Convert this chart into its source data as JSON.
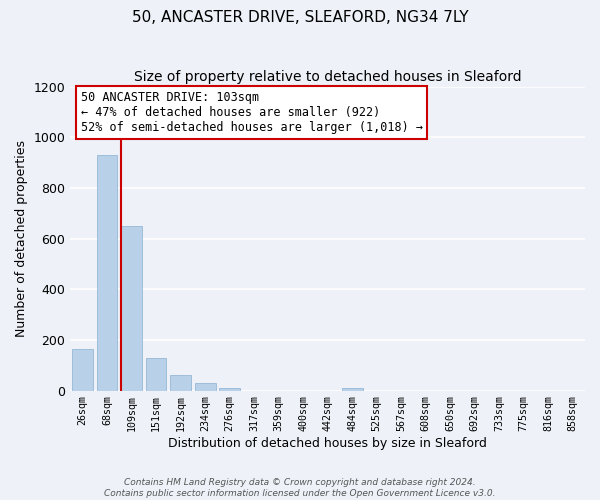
{
  "title": "50, ANCASTER DRIVE, SLEAFORD, NG34 7LY",
  "subtitle": "Size of property relative to detached houses in Sleaford",
  "xlabel": "Distribution of detached houses by size in Sleaford",
  "ylabel": "Number of detached properties",
  "bar_labels": [
    "26sqm",
    "68sqm",
    "109sqm",
    "151sqm",
    "192sqm",
    "234sqm",
    "276sqm",
    "317sqm",
    "359sqm",
    "400sqm",
    "442sqm",
    "484sqm",
    "525sqm",
    "567sqm",
    "608sqm",
    "650sqm",
    "692sqm",
    "733sqm",
    "775sqm",
    "816sqm",
    "858sqm"
  ],
  "bar_values": [
    163,
    930,
    650,
    127,
    62,
    28,
    10,
    0,
    0,
    0,
    0,
    10,
    0,
    0,
    0,
    0,
    0,
    0,
    0,
    0,
    0
  ],
  "bar_color": "#b8d0e8",
  "vline_x_index": 2,
  "vline_color": "#cc0000",
  "annotation_line1": "50 ANCASTER DRIVE: 103sqm",
  "annotation_line2": "← 47% of detached houses are smaller (922)",
  "annotation_line3": "52% of semi-detached houses are larger (1,018) →",
  "annotation_box_color": "#ffffff",
  "annotation_box_edge": "#cc0000",
  "ylim": [
    0,
    1200
  ],
  "yticks": [
    0,
    200,
    400,
    600,
    800,
    1000,
    1200
  ],
  "footer_line1": "Contains HM Land Registry data © Crown copyright and database right 2024.",
  "footer_line2": "Contains public sector information licensed under the Open Government Licence v3.0.",
  "bg_color": "#eef2f8",
  "grid_color": "#ffffff",
  "title_fontsize": 11,
  "subtitle_fontsize": 10
}
